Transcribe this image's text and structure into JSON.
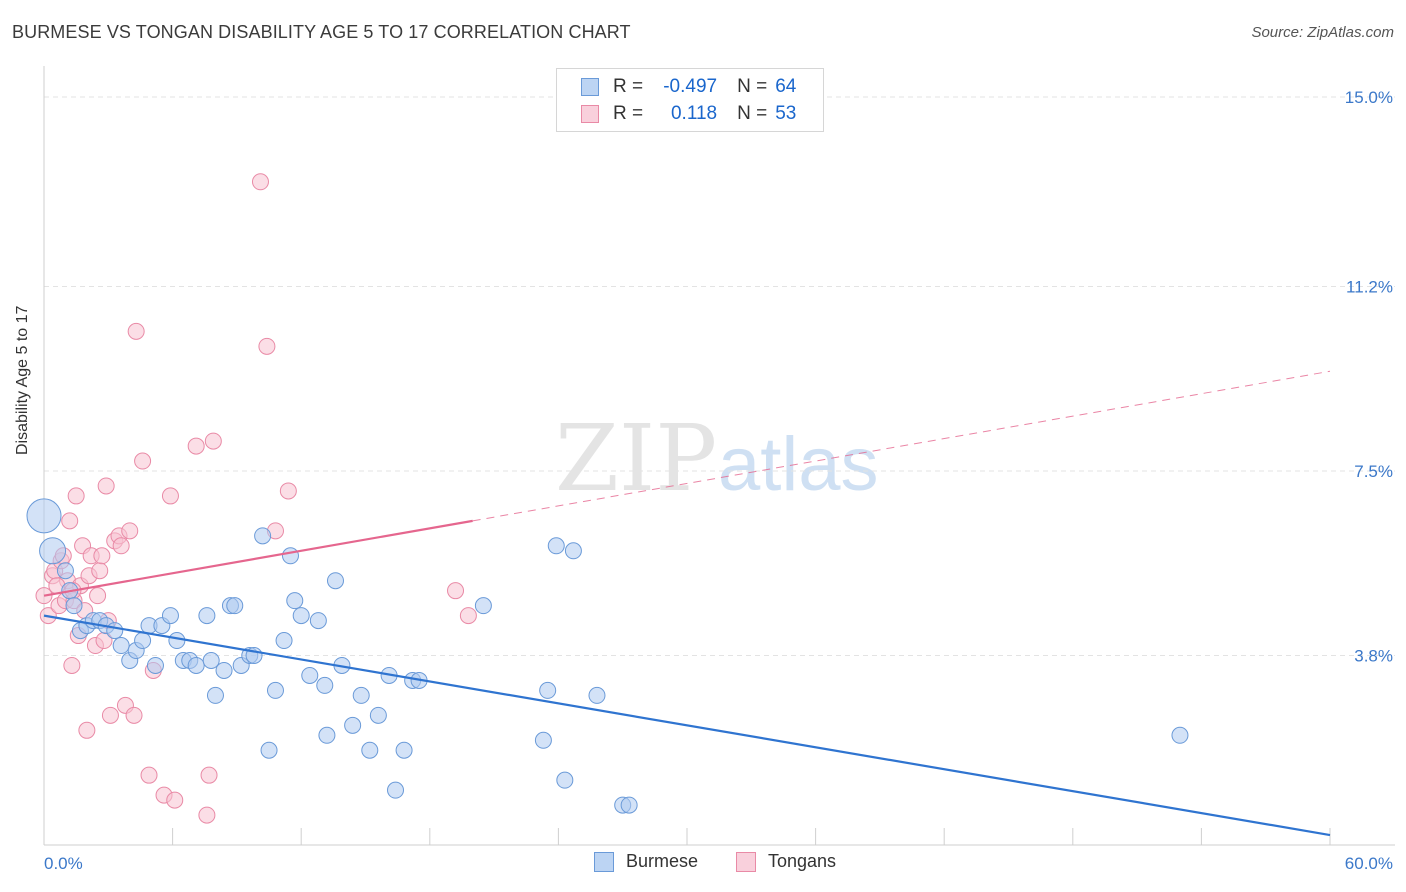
{
  "header": {
    "title": "BURMESE VS TONGAN DISABILITY AGE 5 TO 17 CORRELATION CHART",
    "source": "Source: ZipAtlas.com"
  },
  "legend": {
    "rows": [
      {
        "r_label": "R =",
        "r_value": "-0.497",
        "n_label": "N =",
        "n_value": "64"
      },
      {
        "r_label": "R =",
        "r_value": "0.118",
        "n_label": "N =",
        "n_value": "53"
      }
    ]
  },
  "watermark": {
    "zip": "ZIP",
    "atlas": "atlas"
  },
  "colors": {
    "burmese_fill": "#aecbf0",
    "burmese_stroke": "#6a9ad8",
    "burmese_line": "#2f74d0",
    "tongan_fill": "#f7c3d1",
    "tongan_stroke": "#e98aa6",
    "tongan_line": "#e5668e",
    "tick_text": "#3b78c9",
    "grid": "#e3e3e3"
  },
  "chart_data": {
    "type": "scatter",
    "title": "BURMESE VS TONGAN DISABILITY AGE 5 TO 17 CORRELATION CHART",
    "xlabel": "",
    "ylabel": "Disability Age 5 to 17",
    "xlim": [
      0,
      60
    ],
    "ylim": [
      0,
      15
    ],
    "x_tick_labels": [
      "0.0%",
      "60.0%"
    ],
    "y_ticks": [
      3.8,
      7.5,
      11.2,
      15.0
    ],
    "y_tick_labels": [
      "3.8%",
      "7.5%",
      "11.2%",
      "15.0%"
    ],
    "grid": true,
    "legend_position": "top-center",
    "series": [
      {
        "name": "Burmese",
        "points": [
          [
            0.0,
            6.6
          ],
          [
            0.4,
            5.9
          ],
          [
            1.0,
            5.5
          ],
          [
            1.2,
            5.1
          ],
          [
            1.4,
            4.8
          ],
          [
            1.7,
            4.3
          ],
          [
            2.0,
            4.4
          ],
          [
            2.3,
            4.5
          ],
          [
            2.6,
            4.5
          ],
          [
            2.9,
            4.4
          ],
          [
            3.3,
            4.3
          ],
          [
            3.6,
            4.0
          ],
          [
            4.0,
            3.7
          ],
          [
            4.3,
            3.9
          ],
          [
            4.6,
            4.1
          ],
          [
            4.9,
            4.4
          ],
          [
            5.2,
            3.6
          ],
          [
            5.5,
            4.4
          ],
          [
            5.9,
            4.6
          ],
          [
            6.2,
            4.1
          ],
          [
            6.5,
            3.7
          ],
          [
            6.8,
            3.7
          ],
          [
            7.1,
            3.6
          ],
          [
            7.6,
            4.6
          ],
          [
            7.8,
            3.7
          ],
          [
            8.0,
            3.0
          ],
          [
            8.4,
            3.5
          ],
          [
            8.7,
            4.8
          ],
          [
            8.9,
            4.8
          ],
          [
            9.2,
            3.6
          ],
          [
            9.6,
            3.8
          ],
          [
            9.8,
            3.8
          ],
          [
            10.2,
            6.2
          ],
          [
            10.5,
            1.9
          ],
          [
            10.8,
            3.1
          ],
          [
            11.2,
            4.1
          ],
          [
            11.5,
            5.8
          ],
          [
            11.7,
            4.9
          ],
          [
            12.0,
            4.6
          ],
          [
            12.4,
            3.4
          ],
          [
            12.8,
            4.5
          ],
          [
            13.1,
            3.2
          ],
          [
            13.2,
            2.2
          ],
          [
            13.6,
            5.3
          ],
          [
            13.9,
            3.6
          ],
          [
            14.4,
            2.4
          ],
          [
            14.8,
            3.0
          ],
          [
            15.2,
            1.9
          ],
          [
            15.6,
            2.6
          ],
          [
            16.1,
            3.4
          ],
          [
            16.4,
            1.1
          ],
          [
            16.8,
            1.9
          ],
          [
            17.2,
            3.3
          ],
          [
            17.5,
            3.3
          ],
          [
            20.5,
            4.8
          ],
          [
            23.3,
            2.1
          ],
          [
            23.5,
            3.1
          ],
          [
            23.9,
            6.0
          ],
          [
            24.3,
            1.3
          ],
          [
            24.7,
            5.9
          ],
          [
            25.8,
            3.0
          ],
          [
            27.0,
            0.8
          ],
          [
            27.3,
            0.8
          ],
          [
            53.0,
            2.2
          ]
        ]
      },
      {
        "name": "Tongans",
        "points": [
          [
            0.0,
            5.0
          ],
          [
            0.2,
            4.6
          ],
          [
            0.4,
            5.4
          ],
          [
            0.5,
            5.5
          ],
          [
            0.7,
            4.8
          ],
          [
            0.8,
            5.7
          ],
          [
            1.0,
            4.9
          ],
          [
            1.1,
            5.3
          ],
          [
            1.2,
            6.5
          ],
          [
            1.3,
            3.6
          ],
          [
            1.4,
            4.9
          ],
          [
            1.5,
            7.0
          ],
          [
            1.6,
            4.2
          ],
          [
            1.7,
            5.2
          ],
          [
            1.8,
            6.0
          ],
          [
            2.0,
            2.3
          ],
          [
            2.1,
            5.4
          ],
          [
            2.2,
            5.8
          ],
          [
            2.4,
            4.0
          ],
          [
            2.6,
            5.5
          ],
          [
            2.7,
            5.8
          ],
          [
            2.8,
            4.1
          ],
          [
            2.9,
            7.2
          ],
          [
            3.1,
            2.6
          ],
          [
            3.3,
            6.1
          ],
          [
            3.5,
            6.2
          ],
          [
            3.6,
            6.0
          ],
          [
            3.8,
            2.8
          ],
          [
            4.0,
            6.3
          ],
          [
            4.2,
            2.6
          ],
          [
            4.3,
            10.3
          ],
          [
            4.6,
            7.7
          ],
          [
            4.9,
            1.4
          ],
          [
            5.1,
            3.5
          ],
          [
            5.6,
            1.0
          ],
          [
            5.9,
            7.0
          ],
          [
            6.1,
            0.9
          ],
          [
            7.1,
            8.0
          ],
          [
            7.6,
            0.6
          ],
          [
            7.7,
            1.4
          ],
          [
            7.9,
            8.1
          ],
          [
            10.1,
            13.3
          ],
          [
            10.4,
            10.0
          ],
          [
            10.8,
            6.3
          ],
          [
            11.4,
            7.1
          ],
          [
            19.2,
            5.1
          ],
          [
            19.8,
            4.6
          ],
          [
            0.6,
            5.2
          ],
          [
            1.9,
            4.7
          ],
          [
            0.9,
            5.8
          ],
          [
            2.5,
            5.0
          ],
          [
            3.0,
            4.5
          ],
          [
            1.35,
            5.1
          ]
        ]
      }
    ],
    "trend_lines": [
      {
        "series": "Burmese",
        "from": [
          0,
          4.6
        ],
        "to": [
          60,
          0.2
        ],
        "style": "solid"
      },
      {
        "series": "Tongans",
        "from": [
          0,
          5.0
        ],
        "to": [
          20,
          6.5
        ],
        "style": "solid"
      },
      {
        "series": "Tongans",
        "from": [
          20,
          6.5
        ],
        "to": [
          60,
          9.5
        ],
        "style": "dashed"
      }
    ]
  },
  "bottom_legend": {
    "items": [
      "Burmese",
      "Tongans"
    ]
  }
}
